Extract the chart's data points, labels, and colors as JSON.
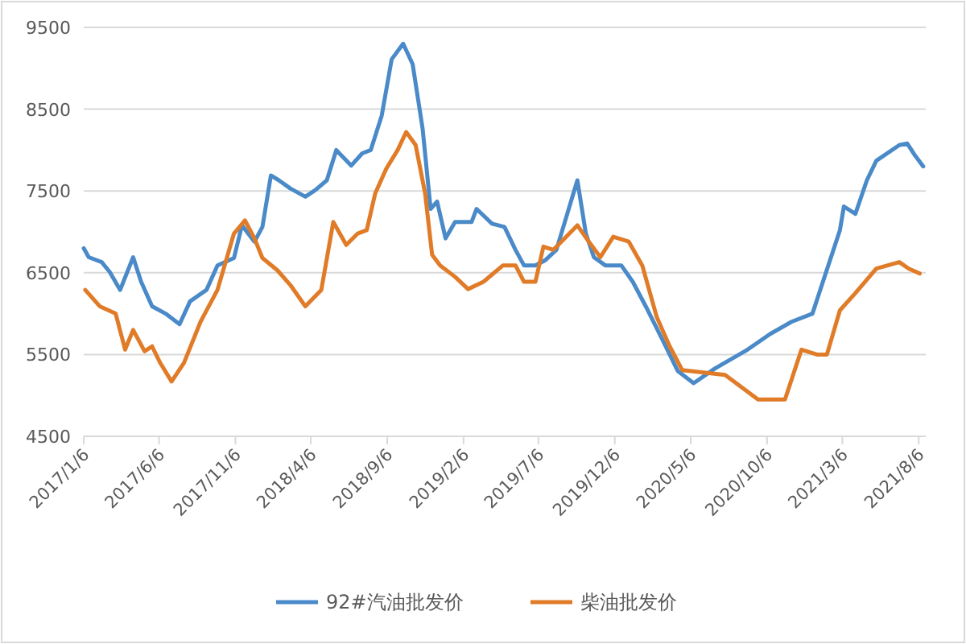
{
  "chart_data": {
    "type": "line",
    "xlim": [
      "2017-01-06",
      "2021-08-20"
    ],
    "ylim": [
      4500,
      9500
    ],
    "xticks": [
      {
        "value": "2017-01-06",
        "label": "2017/1/6"
      },
      {
        "value": "2017-06-06",
        "label": "2017/6/6"
      },
      {
        "value": "2017-11-06",
        "label": "2017/11/6"
      },
      {
        "value": "2018-04-06",
        "label": "2018/4/6"
      },
      {
        "value": "2018-09-06",
        "label": "2018/9/6"
      },
      {
        "value": "2019-02-06",
        "label": "2019/2/6"
      },
      {
        "value": "2019-07-06",
        "label": "2019/7/6"
      },
      {
        "value": "2019-12-06",
        "label": "2019/12/6"
      },
      {
        "value": "2020-05-06",
        "label": "2020/5/6"
      },
      {
        "value": "2020-10-06",
        "label": "2020/10/6"
      },
      {
        "value": "2021-03-06",
        "label": "2021/3/6"
      },
      {
        "value": "2021-08-06",
        "label": "2021/8/6"
      }
    ],
    "yticks": [
      4500,
      5500,
      6500,
      7500,
      8500,
      9500
    ],
    "grid": "y",
    "legend": "bottom",
    "series": [
      {
        "name": "92#汽油批发价",
        "color": "#4a8ac8",
        "x": [
          "2017-01-06",
          "2017-01-16",
          "2017-02-11",
          "2017-02-27",
          "2017-03-20",
          "2017-04-15",
          "2017-05-01",
          "2017-05-23",
          "2017-06-19",
          "2017-07-17",
          "2017-08-07",
          "2017-09-09",
          "2017-10-01",
          "2017-11-03",
          "2017-11-19",
          "2017-12-14",
          "2017-12-30",
          "2018-01-16",
          "2018-02-01",
          "2018-02-24",
          "2018-03-26",
          "2018-04-15",
          "2018-05-08",
          "2018-05-27",
          "2018-06-26",
          "2018-07-18",
          "2018-08-04",
          "2018-08-26",
          "2018-09-15",
          "2018-10-08",
          "2018-10-27",
          "2018-11-16",
          "2018-12-02",
          "2018-12-15",
          "2019-01-01",
          "2019-01-20",
          "2019-02-22",
          "2019-03-04",
          "2019-04-04",
          "2019-04-29",
          "2019-05-21",
          "2019-06-07",
          "2019-06-30",
          "2019-07-19",
          "2019-08-11",
          "2019-09-22",
          "2019-10-09",
          "2019-10-25",
          "2019-11-17",
          "2019-12-19",
          "2020-01-11",
          "2020-02-06",
          "2020-03-09",
          "2020-04-10",
          "2020-05-12",
          "2020-06-24",
          "2020-08-28",
          "2020-10-12",
          "2020-11-24",
          "2021-01-05",
          "2021-03-01",
          "2021-03-09",
          "2021-04-01",
          "2021-04-24",
          "2021-05-13",
          "2021-06-28",
          "2021-07-14",
          "2021-07-30",
          "2021-08-15"
        ],
        "values": [
          6800,
          6690,
          6630,
          6510,
          6290,
          6690,
          6390,
          6090,
          6000,
          5870,
          6150,
          6290,
          6590,
          6680,
          7080,
          6880,
          7060,
          7690,
          7630,
          7530,
          7430,
          7510,
          7630,
          8000,
          7810,
          7960,
          8000,
          8420,
          9110,
          9300,
          9050,
          8260,
          7280,
          7370,
          6920,
          7120,
          7120,
          7280,
          7100,
          7060,
          6780,
          6590,
          6590,
          6650,
          6780,
          7630,
          6980,
          6690,
          6590,
          6590,
          6390,
          6090,
          5700,
          5300,
          5150,
          5330,
          5560,
          5750,
          5900,
          6000,
          7020,
          7310,
          7220,
          7630,
          7870,
          8060,
          8080,
          7930,
          7800
        ]
      },
      {
        "name": "柴油批发价",
        "color": "#e07b28",
        "x": [
          "2017-01-09",
          "2017-02-07",
          "2017-03-11",
          "2017-03-30",
          "2017-04-15",
          "2017-05-08",
          "2017-05-23",
          "2017-06-08",
          "2017-07-01",
          "2017-07-26",
          "2017-08-28",
          "2017-10-01",
          "2017-11-03",
          "2017-11-25",
          "2017-12-14",
          "2017-12-30",
          "2018-01-29",
          "2018-02-24",
          "2018-03-26",
          "2018-04-27",
          "2018-05-21",
          "2018-06-16",
          "2018-07-09",
          "2018-07-27",
          "2018-08-13",
          "2018-09-04",
          "2018-09-27",
          "2018-10-14",
          "2018-11-02",
          "2018-11-21",
          "2018-12-05",
          "2018-12-21",
          "2019-01-20",
          "2019-02-15",
          "2019-03-18",
          "2019-04-26",
          "2019-05-21",
          "2019-06-07",
          "2019-06-30",
          "2019-07-16",
          "2019-08-05",
          "2019-09-22",
          "2019-10-15",
          "2019-11-07",
          "2019-12-03",
          "2020-01-03",
          "2020-01-30",
          "2020-02-28",
          "2020-03-25",
          "2020-04-19",
          "2020-07-14",
          "2020-09-18",
          "2020-11-11",
          "2020-12-14",
          "2021-01-14",
          "2021-02-03",
          "2021-03-01",
          "2021-04-01",
          "2021-05-13",
          "2021-06-28",
          "2021-07-17",
          "2021-08-08"
        ],
        "values": [
          6290,
          6090,
          6000,
          5560,
          5800,
          5540,
          5600,
          5400,
          5170,
          5400,
          5900,
          6290,
          6980,
          7140,
          6920,
          6680,
          6530,
          6350,
          6090,
          6290,
          7120,
          6840,
          6980,
          7020,
          7470,
          7770,
          8000,
          8220,
          8060,
          7470,
          6720,
          6590,
          6450,
          6300,
          6390,
          6590,
          6590,
          6390,
          6390,
          6820,
          6780,
          7080,
          6880,
          6690,
          6940,
          6880,
          6590,
          5960,
          5600,
          5310,
          5250,
          4950,
          4950,
          5560,
          5500,
          5500,
          6040,
          6250,
          6550,
          6630,
          6550,
          6490
        ]
      }
    ]
  }
}
